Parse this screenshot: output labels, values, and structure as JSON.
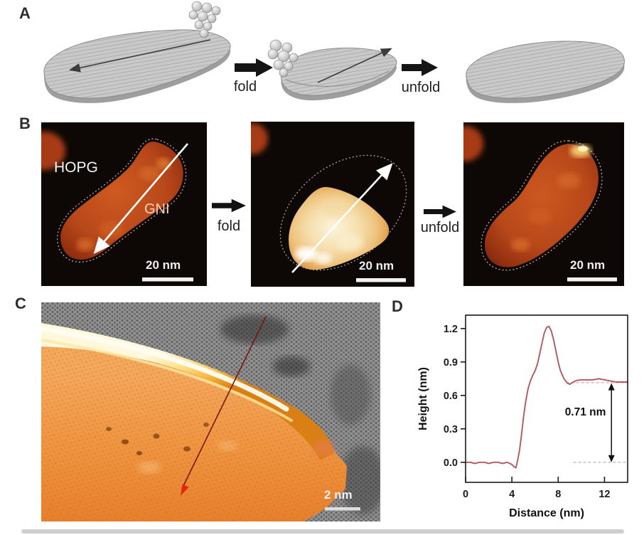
{
  "figure_labels": {
    "a": "A",
    "b": "B",
    "c": "C",
    "d": "D"
  },
  "panel_a": {
    "fold_label": "fold",
    "unfold_label": "unfold"
  },
  "panel_b": {
    "fold_label": "fold",
    "unfold_label": "unfold",
    "before_image": {
      "substrate_label": "HOPG",
      "island_label": "GNI",
      "scale_label": "20 nm"
    },
    "folded_image": {
      "scale_label": "20 nm"
    },
    "unfolded_image": {
      "scale_label": "20 nm"
    }
  },
  "panel_c": {
    "scale_label": "2 nm"
  },
  "colors": {
    "stm_background": "#0d0806",
    "island_orange": "#c2511d",
    "folded_bright": "#f6dfae",
    "ridge_gold": "#f6b83e",
    "hopg_gray": "#919191",
    "schematic_gray": "#c9c9c9",
    "profile_line": "#b5575f",
    "arrow_red": "#e3270f"
  },
  "chart_data": {
    "type": "line",
    "title": "",
    "xlabel": "Distance (nm)",
    "ylabel": "Height (nm)",
    "xlim": [
      0,
      14
    ],
    "ylim": [
      -0.18,
      1.32
    ],
    "xticks": [
      0,
      4,
      8,
      12
    ],
    "yticks": [
      0,
      0.3,
      0.6,
      0.9,
      1.2
    ],
    "grid": false,
    "legend": false,
    "line_color": "#b5575f",
    "series": [
      {
        "name": "height-profile",
        "x": [
          0,
          0.4,
          0.8,
          1.2,
          1.6,
          2,
          2.4,
          2.8,
          3.2,
          3.6,
          4,
          4.2,
          4.35,
          4.5,
          4.65,
          4.8,
          5,
          5.2,
          5.4,
          5.6,
          5.8,
          6,
          6.2,
          6.4,
          6.6,
          6.8,
          7,
          7.2,
          7.4,
          7.6,
          7.8,
          8,
          8.2,
          8.5,
          8.8,
          9,
          9.3,
          9.6,
          10,
          10.5,
          11,
          11.5,
          12,
          12.5,
          13,
          13.5,
          14
        ],
        "y": [
          0,
          0,
          -0.01,
          0,
          0,
          -0.01,
          0,
          0,
          -0.01,
          0,
          -0.02,
          -0.04,
          -0.05,
          0.02,
          0.1,
          0.22,
          0.4,
          0.55,
          0.66,
          0.73,
          0.78,
          0.82,
          0.88,
          0.97,
          1.07,
          1.16,
          1.21,
          1.22,
          1.18,
          1.1,
          1.0,
          0.9,
          0.82,
          0.75,
          0.71,
          0.7,
          0.72,
          0.735,
          0.74,
          0.74,
          0.74,
          0.75,
          0.74,
          0.73,
          0.72,
          0.72,
          0.72
        ]
      }
    ],
    "annotations": {
      "height_label": "0.71 nm",
      "measured_height_nm": 0.71,
      "plateau_dash_y": 0.715,
      "baseline_dash_y": 0,
      "arrow_x": 12.6
    }
  }
}
